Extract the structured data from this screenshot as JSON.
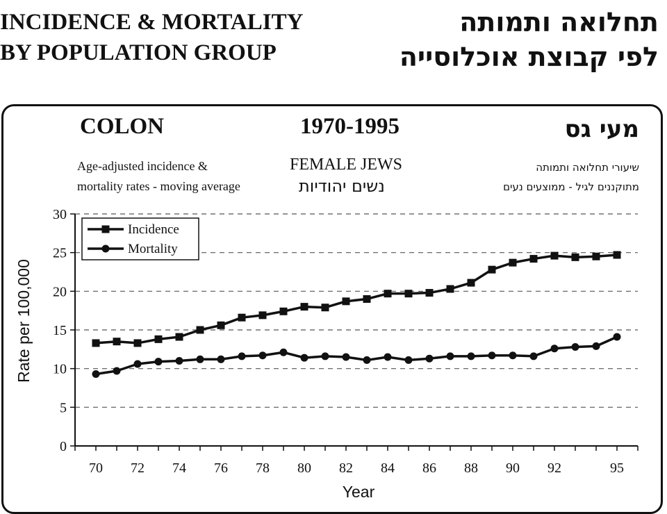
{
  "header": {
    "title_en_line1": "INCIDENCE & MORTALITY",
    "title_en_line2": "BY POPULATION GROUP",
    "title_he_line1": "תחלואה ותמותה",
    "title_he_line2": "לפי קבוצת אוכלוסייה"
  },
  "panel": {
    "site": "COLON",
    "site_he": "מעי גס",
    "years": "1970-1995",
    "description_en_line1": "Age-adjusted incidence &",
    "description_en_line2": "mortality rates - moving average",
    "group_en": "FEMALE  JEWS",
    "group_he": "נשים יהודיות",
    "description_he_line1": "שיעורי תחלואה ותמותה",
    "description_he_line2": "מתוקננים לגיל - ממוצעים נעים"
  },
  "colors": {
    "line": "#111111",
    "grid": "#555555",
    "background": "#ffffff"
  },
  "chart_data": {
    "type": "line",
    "x": [
      1970,
      1971,
      1972,
      1973,
      1974,
      1975,
      1976,
      1977,
      1978,
      1979,
      1980,
      1981,
      1982,
      1983,
      1984,
      1985,
      1986,
      1987,
      1988,
      1989,
      1990,
      1991,
      1992,
      1993,
      1994,
      1995
    ],
    "series": [
      {
        "name": "Incidence",
        "marker": "square",
        "values": [
          13.3,
          13.5,
          13.3,
          13.8,
          14.1,
          15.0,
          15.6,
          16.6,
          16.9,
          17.4,
          18.0,
          17.9,
          18.7,
          19.0,
          19.7,
          19.7,
          19.8,
          20.3,
          21.1,
          22.8,
          23.7,
          24.2,
          24.6,
          24.4,
          24.5,
          24.7
        ]
      },
      {
        "name": "Mortality",
        "marker": "circle",
        "values": [
          9.3,
          9.7,
          10.6,
          10.9,
          11.0,
          11.2,
          11.2,
          11.6,
          11.7,
          12.1,
          11.4,
          11.6,
          11.5,
          11.1,
          11.5,
          11.1,
          11.3,
          11.6,
          11.6,
          11.7,
          11.7,
          11.6,
          12.6,
          12.8,
          12.9,
          14.1
        ]
      }
    ],
    "xlabel": "Year",
    "ylabel": "Rate per 100,000",
    "xlim": [
      1969,
      1996
    ],
    "ylim": [
      0,
      30
    ],
    "x_ticks": [
      1970,
      1972,
      1974,
      1976,
      1978,
      1980,
      1982,
      1984,
      1986,
      1988,
      1990,
      1992,
      1995
    ],
    "x_tick_labels": [
      "70",
      "72",
      "74",
      "76",
      "78",
      "80",
      "82",
      "84",
      "86",
      "88",
      "90",
      "92",
      "95"
    ],
    "y_ticks": [
      0,
      5,
      10,
      15,
      20,
      25,
      30
    ],
    "y_tick_labels": [
      "0",
      "5",
      "10",
      "15",
      "20",
      "25",
      "30"
    ],
    "grid": "horizontal-dashed",
    "legend": "top-left"
  }
}
